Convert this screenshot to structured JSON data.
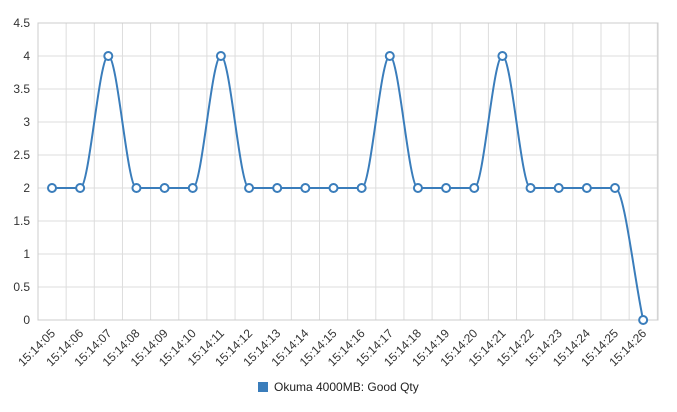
{
  "chart_data": {
    "type": "line",
    "x": [
      "15:14:05",
      "15:14:06",
      "15:14:07",
      "15:14:08",
      "15:14:09",
      "15:14:10",
      "15:14:11",
      "15:14:12",
      "15:14:13",
      "15:14:14",
      "15:14:15",
      "15:14:16",
      "15:14:17",
      "15:14:18",
      "15:14:19",
      "15:14:20",
      "15:14:21",
      "15:14:22",
      "15:14:23",
      "15:14:24",
      "15:14:25",
      "15:14:26"
    ],
    "series": [
      {
        "name": "Okuma 4000MB: Good Qty",
        "color": "#3a7dbb",
        "values": [
          2,
          2,
          4,
          2,
          2,
          2,
          4,
          2,
          2,
          2,
          2,
          2,
          4,
          2,
          2,
          2,
          4,
          2,
          2,
          2,
          2,
          0
        ]
      }
    ],
    "ylim": [
      0,
      4.5
    ],
    "yticks": [
      "0",
      "0.5",
      "1",
      "1.5",
      "2",
      "2.5",
      "3",
      "3.5",
      "4",
      "4.5"
    ],
    "grid": true,
    "legend_position": "bottom",
    "title": "",
    "xlabel": "",
    "ylabel": ""
  }
}
